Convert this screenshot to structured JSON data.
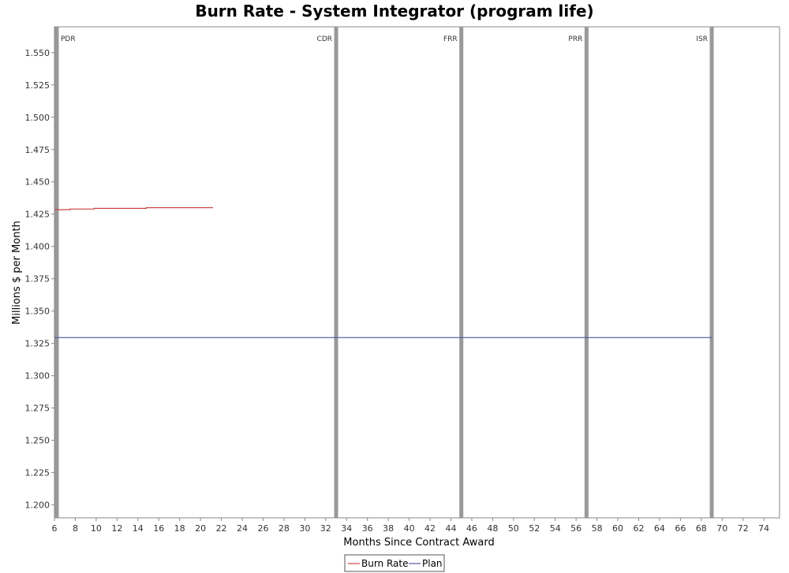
{
  "chart_data": {
    "type": "line",
    "title": "Burn Rate - System Integrator (program life)",
    "xlabel": "Months Since Contract Award",
    "ylabel": "Millions $ per Month",
    "xlim": [
      6,
      75.5
    ],
    "ylim": [
      1.19,
      1.57
    ],
    "xticks": [
      6,
      8,
      10,
      12,
      14,
      16,
      18,
      20,
      22,
      24,
      26,
      28,
      30,
      32,
      34,
      36,
      38,
      40,
      42,
      44,
      46,
      48,
      50,
      52,
      54,
      56,
      58,
      60,
      62,
      64,
      66,
      68,
      70,
      72,
      74
    ],
    "yticks": [
      1.2,
      1.225,
      1.25,
      1.275,
      1.3,
      1.325,
      1.35,
      1.375,
      1.4,
      1.425,
      1.45,
      1.475,
      1.5,
      1.525,
      1.55
    ],
    "ytick_labels": [
      "1.200",
      "1.225",
      "1.250",
      "1.275",
      "1.300",
      "1.325",
      "1.350",
      "1.375",
      "1.400",
      "1.425",
      "1.450",
      "1.475",
      "1.500",
      "1.525",
      "1.550"
    ],
    "milestones": [
      {
        "label": "PDR",
        "x": 6
      },
      {
        "label": "CDR",
        "x": 33
      },
      {
        "label": "FRR",
        "x": 45
      },
      {
        "label": "PRR",
        "x": 57
      },
      {
        "label": "ISR",
        "x": 69
      }
    ],
    "series": [
      {
        "name": "Burn Rate",
        "color": "#cc4444",
        "step": true,
        "x": [
          6,
          7.5,
          9.8,
          14.8,
          21.2
        ],
        "y": [
          1.4285,
          1.429,
          1.4295,
          1.43,
          1.43
        ]
      },
      {
        "name": "Plan",
        "color": "#5555aa",
        "step": false,
        "x": [
          6,
          69
        ],
        "y": [
          1.3295,
          1.3295
        ]
      }
    ],
    "legend": [
      "Burn Rate",
      "Plan"
    ],
    "grid": false,
    "legend_position": "bottom-center"
  }
}
